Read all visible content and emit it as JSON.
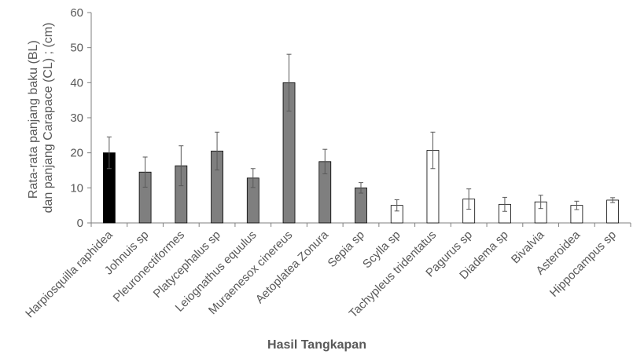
{
  "chart_data": {
    "type": "bar",
    "xlabel": "Hasil Tangkapan",
    "ylabel_lines": [
      "Rata-rata panjang baku (BL)",
      "dan panjang Carapace (CL) ; (cm)"
    ],
    "ylim": [
      0,
      60
    ],
    "yticks": [
      0,
      10,
      20,
      30,
      40,
      50,
      60
    ],
    "grid": false,
    "legend": "none",
    "categories": [
      "Harpiosquilla raphidea",
      "Johnuis sp",
      "Pleuronectiformes",
      "Platycephalus sp",
      "Leiognathus equulus",
      "Muraenesox cinereus",
      "Aetoplatea Zonura",
      "Sepia sp",
      "Scylla sp",
      "Tachypleus tridentatus",
      "Pagurus sp",
      "Diadema sp",
      "Bivalvia",
      "Asteroidea",
      "Hippocampus sp"
    ],
    "values": [
      20.0,
      14.5,
      16.3,
      20.5,
      12.8,
      40.0,
      17.5,
      10.0,
      5.0,
      20.7,
      6.8,
      5.3,
      6.0,
      5.0,
      6.5
    ],
    "errors": [
      4.5,
      4.3,
      5.7,
      5.4,
      2.7,
      8.1,
      3.5,
      1.5,
      1.6,
      5.2,
      2.9,
      2.0,
      1.9,
      1.2,
      0.7
    ],
    "bar_fill": [
      "#000000",
      "#7f7f7f",
      "#7f7f7f",
      "#7f7f7f",
      "#7f7f7f",
      "#7f7f7f",
      "#7f7f7f",
      "#7f7f7f",
      "#ffffff",
      "#ffffff",
      "#ffffff",
      "#ffffff",
      "#ffffff",
      "#ffffff",
      "#ffffff"
    ],
    "bar_stroke": "#000000",
    "axis_color": "#7f7f7f",
    "error_color": "#595959"
  }
}
